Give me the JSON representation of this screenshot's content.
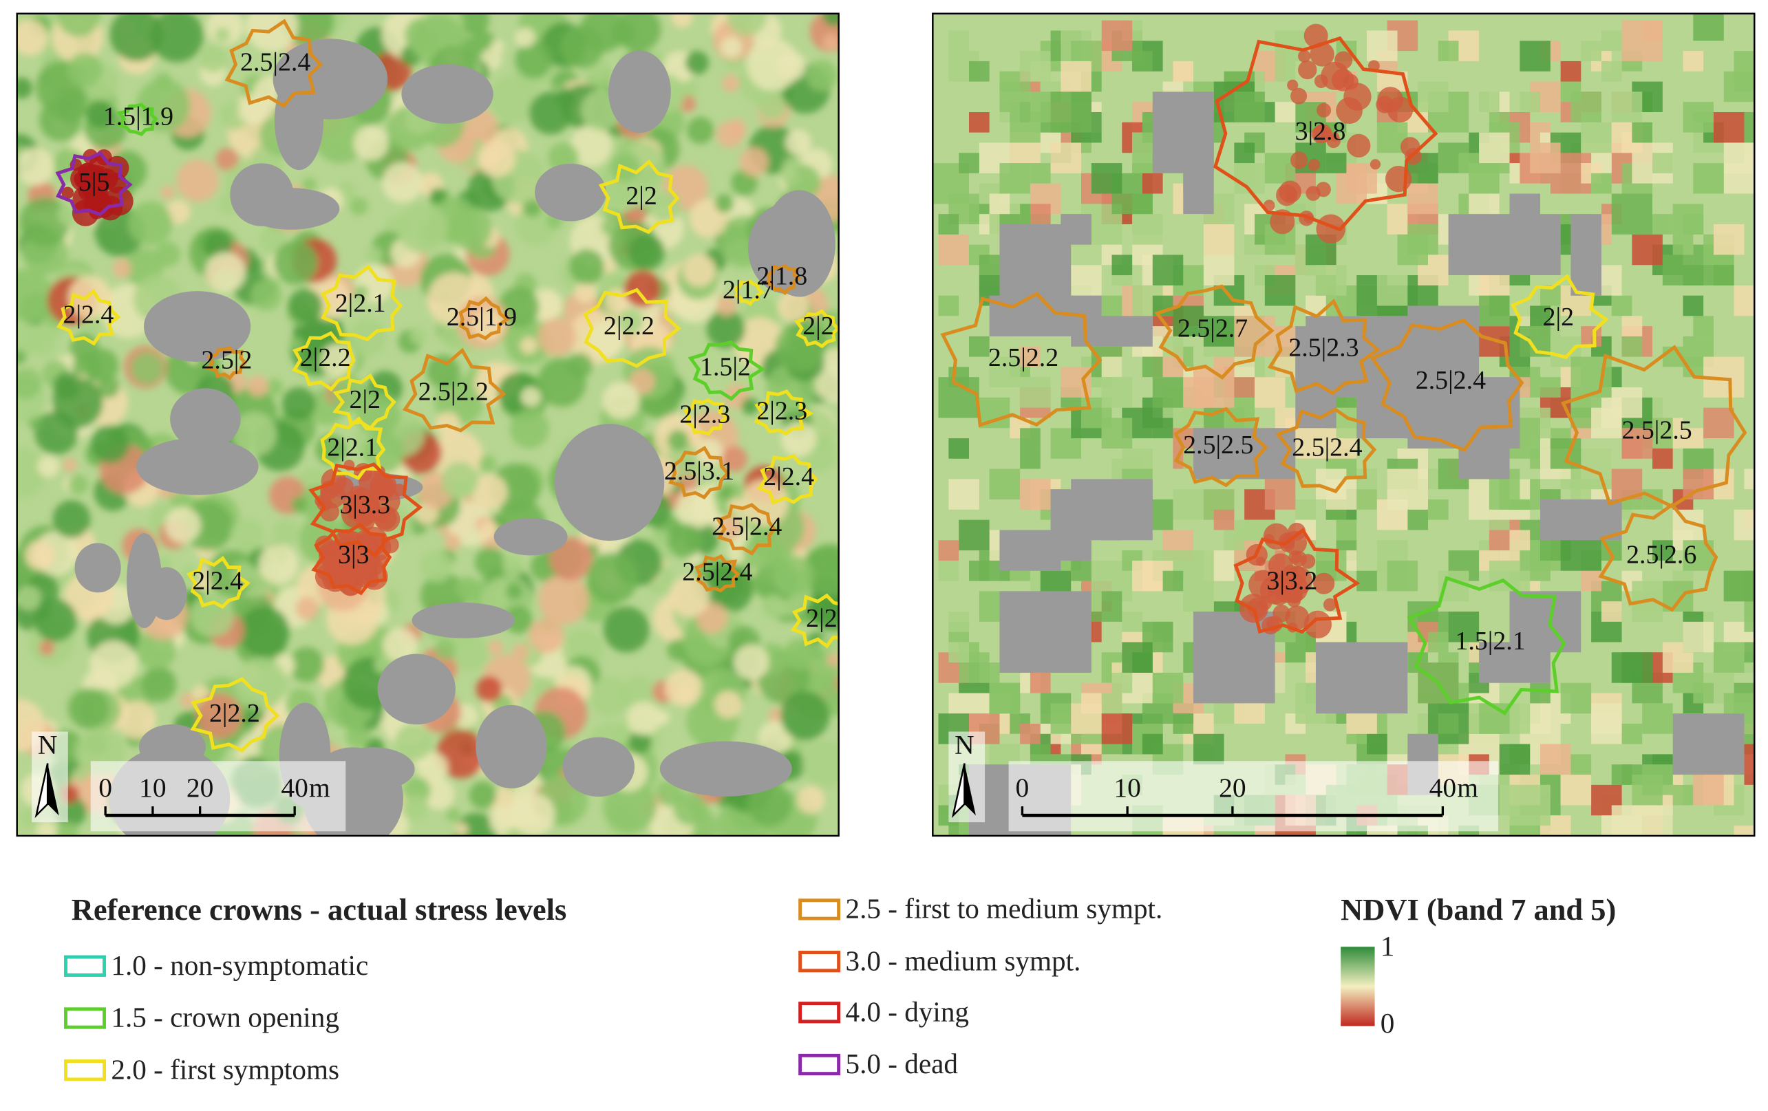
{
  "panels": [
    {
      "crowns": [
        {
          "label": "2.5|2.4",
          "color": "#d98c1f"
        },
        {
          "label": "1.5|1.9",
          "color": "#5ccf2a"
        },
        {
          "label": "5|5",
          "color": "#8a2aa8"
        },
        {
          "label": "2|2",
          "color": "#f0e020"
        },
        {
          "label": "2|1.7",
          "color": "#f0e020"
        },
        {
          "label": "2|1.8",
          "color": "#d98c1f"
        },
        {
          "label": "2|2.4",
          "color": "#f0e020"
        },
        {
          "label": "2|2.1",
          "color": "#f0e020"
        },
        {
          "label": "2.5|1.9",
          "color": "#d98c1f"
        },
        {
          "label": "2|2.2",
          "color": "#f0e020"
        },
        {
          "label": "2|2",
          "color": "#f0e020"
        },
        {
          "label": "2.5|2",
          "color": "#d98c1f"
        },
        {
          "label": "2|2.2",
          "color": "#f0e020"
        },
        {
          "label": "1.5|2",
          "color": "#5ccf2a"
        },
        {
          "label": "2.5|2.2",
          "color": "#d98c1f"
        },
        {
          "label": "2|2",
          "color": "#f0e020"
        },
        {
          "label": "2|2.3",
          "color": "#f0e020"
        },
        {
          "label": "2|2.3",
          "color": "#f0e020"
        },
        {
          "label": "2|2.1",
          "color": "#f0e020"
        },
        {
          "label": "2.5|3.1",
          "color": "#d98c1f"
        },
        {
          "label": "2|2.4",
          "color": "#f0e020"
        },
        {
          "label": "3|3.3",
          "color": "#e0501a"
        },
        {
          "label": "2.5|2.4",
          "color": "#d98c1f"
        },
        {
          "label": "3|3",
          "color": "#e0501a"
        },
        {
          "label": "2.5|2.4",
          "color": "#d98c1f"
        },
        {
          "label": "2|2.4",
          "color": "#f0e020"
        },
        {
          "label": "2|2",
          "color": "#f0e020"
        },
        {
          "label": "2|2.2",
          "color": "#f0e020"
        }
      ],
      "scale_bar": {
        "ticks": [
          0,
          10,
          20,
          40
        ],
        "unit": "m"
      },
      "north": "N"
    },
    {
      "crowns": [
        {
          "label": "3|2.8",
          "color": "#e0501a"
        },
        {
          "label": "2.5|2.7",
          "color": "#d98c1f"
        },
        {
          "label": "2.5|2.3",
          "color": "#d98c1f"
        },
        {
          "label": "2|2",
          "color": "#f0e020"
        },
        {
          "label": "2.5|2.2",
          "color": "#d98c1f"
        },
        {
          "label": "2.5|2.4",
          "color": "#d98c1f"
        },
        {
          "label": "2.5|2.5",
          "color": "#d98c1f"
        },
        {
          "label": "2.5|2.4",
          "color": "#d98c1f"
        },
        {
          "label": "2.5|2.5",
          "color": "#d98c1f"
        },
        {
          "label": "2.5|2.6",
          "color": "#d98c1f"
        },
        {
          "label": "3|3.2",
          "color": "#e0501a"
        },
        {
          "label": "1.5|2.1",
          "color": "#5ccf2a"
        }
      ],
      "scale_bar": {
        "ticks": [
          0,
          10,
          20,
          40
        ],
        "unit": "m"
      },
      "north": "N"
    }
  ],
  "legend": {
    "title": "Reference crowns - actual stress levels",
    "items": [
      {
        "label": "1.0  - non-symptomatic",
        "color": "#2ad3b0"
      },
      {
        "label": "1.5  - crown opening",
        "color": "#5ccf2a"
      },
      {
        "label": "2.0 -  first symptoms",
        "color": "#f0e020"
      },
      {
        "label": "2.5 - first to medium sympt.",
        "color": "#d98c1f"
      },
      {
        "label": "3.0 - medium sympt.",
        "color": "#e0501a"
      },
      {
        "label": "4.0 - dying",
        "color": "#d42020"
      },
      {
        "label": "5.0 - dead",
        "color": "#8a2aa8"
      }
    ]
  },
  "ndvi_legend": {
    "title": "NDVI (band 7 and 5)",
    "max": 1,
    "min": 0
  }
}
